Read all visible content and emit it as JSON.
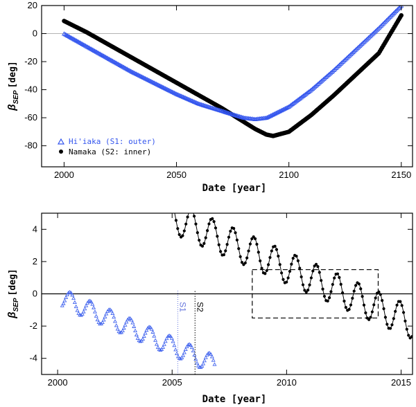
{
  "chart_data": [
    {
      "type": "scatter",
      "panel": "top",
      "xlabel": "Date [year]",
      "ylabel": {
        "base": "β",
        "sub": "SEP",
        "unit": "[deg]"
      },
      "xlim": [
        1990,
        2155
      ],
      "ylim": [
        -95,
        20
      ],
      "xticks": [
        2000,
        2050,
        2100,
        2150
      ],
      "yticks": [
        20,
        0,
        -20,
        -40,
        -60,
        -80
      ],
      "zero_line": true,
      "legend": {
        "position": "bottom-left",
        "entries": [
          {
            "label": "Hi'iaka  (S1: outer)",
            "marker": "triangle",
            "color": "#3355ee"
          },
          {
            "label": "Namaka (S2: inner)",
            "marker": "circle",
            "color": "#000000"
          }
        ]
      },
      "series": [
        {
          "name": "Hi'iaka (S1: outer)",
          "color": "#3355ee",
          "marker": "triangle",
          "x": [
            2000,
            2010,
            2020,
            2030,
            2040,
            2050,
            2060,
            2070,
            2080,
            2085,
            2090,
            2100,
            2110,
            2120,
            2130,
            2140,
            2150
          ],
          "y": [
            0,
            -9,
            -18,
            -27,
            -35,
            -43,
            -50,
            -55,
            -60,
            -61,
            -60,
            -52,
            -40,
            -26,
            -11,
            4,
            20
          ]
        },
        {
          "name": "Namaka (S2: inner)",
          "color": "#000000",
          "marker": "circle",
          "x": [
            2000,
            2010,
            2020,
            2030,
            2040,
            2050,
            2060,
            2070,
            2080,
            2085,
            2090,
            2093,
            2100,
            2110,
            2120,
            2130,
            2140,
            2150
          ],
          "y": [
            9,
            1,
            -8,
            -17,
            -26,
            -35,
            -44,
            -53,
            -63,
            -68,
            -72,
            -73,
            -70,
            -58,
            -44,
            -29,
            -14,
            13
          ]
        }
      ]
    },
    {
      "type": "scatter",
      "panel": "bottom",
      "xlabel": "Date [year]",
      "ylabel": {
        "base": "β",
        "sub": "SEP",
        "unit": "[deg]"
      },
      "xlim": [
        1999.3,
        2015.5
      ],
      "ylim": [
        -5,
        5
      ],
      "xticks": [
        2000,
        2005,
        2010,
        2015
      ],
      "yticks": [
        4,
        2,
        0,
        -2,
        -4
      ],
      "zero_line": true,
      "markers": [
        {
          "label": "S1",
          "x": 2005.25,
          "color": "#6677dd"
        },
        {
          "label": "S2",
          "x": 2006.0,
          "color": "#000000"
        }
      ],
      "box": {
        "x": [
          2008.5,
          2014.0
        ],
        "y": [
          -1.5,
          1.5
        ]
      },
      "series": [
        {
          "name": "Hi'iaka",
          "color": "#4466ee",
          "marker": "triangle",
          "x_start": 2000.2,
          "x_end": 2006.9,
          "period": 0.87,
          "amplitude": 0.58,
          "mean_start": -0.25,
          "slope": -0.62,
          "phase_peak": 2000.55
        },
        {
          "name": "Namaka",
          "color": "#000000",
          "marker": "circle",
          "x_start": 2005.1,
          "x_end": 2015.5,
          "period": 0.91,
          "amplitude": 1.0,
          "mean_start": 4.7,
          "slope": -0.625,
          "phase_peak": 2006.75
        }
      ]
    }
  ]
}
